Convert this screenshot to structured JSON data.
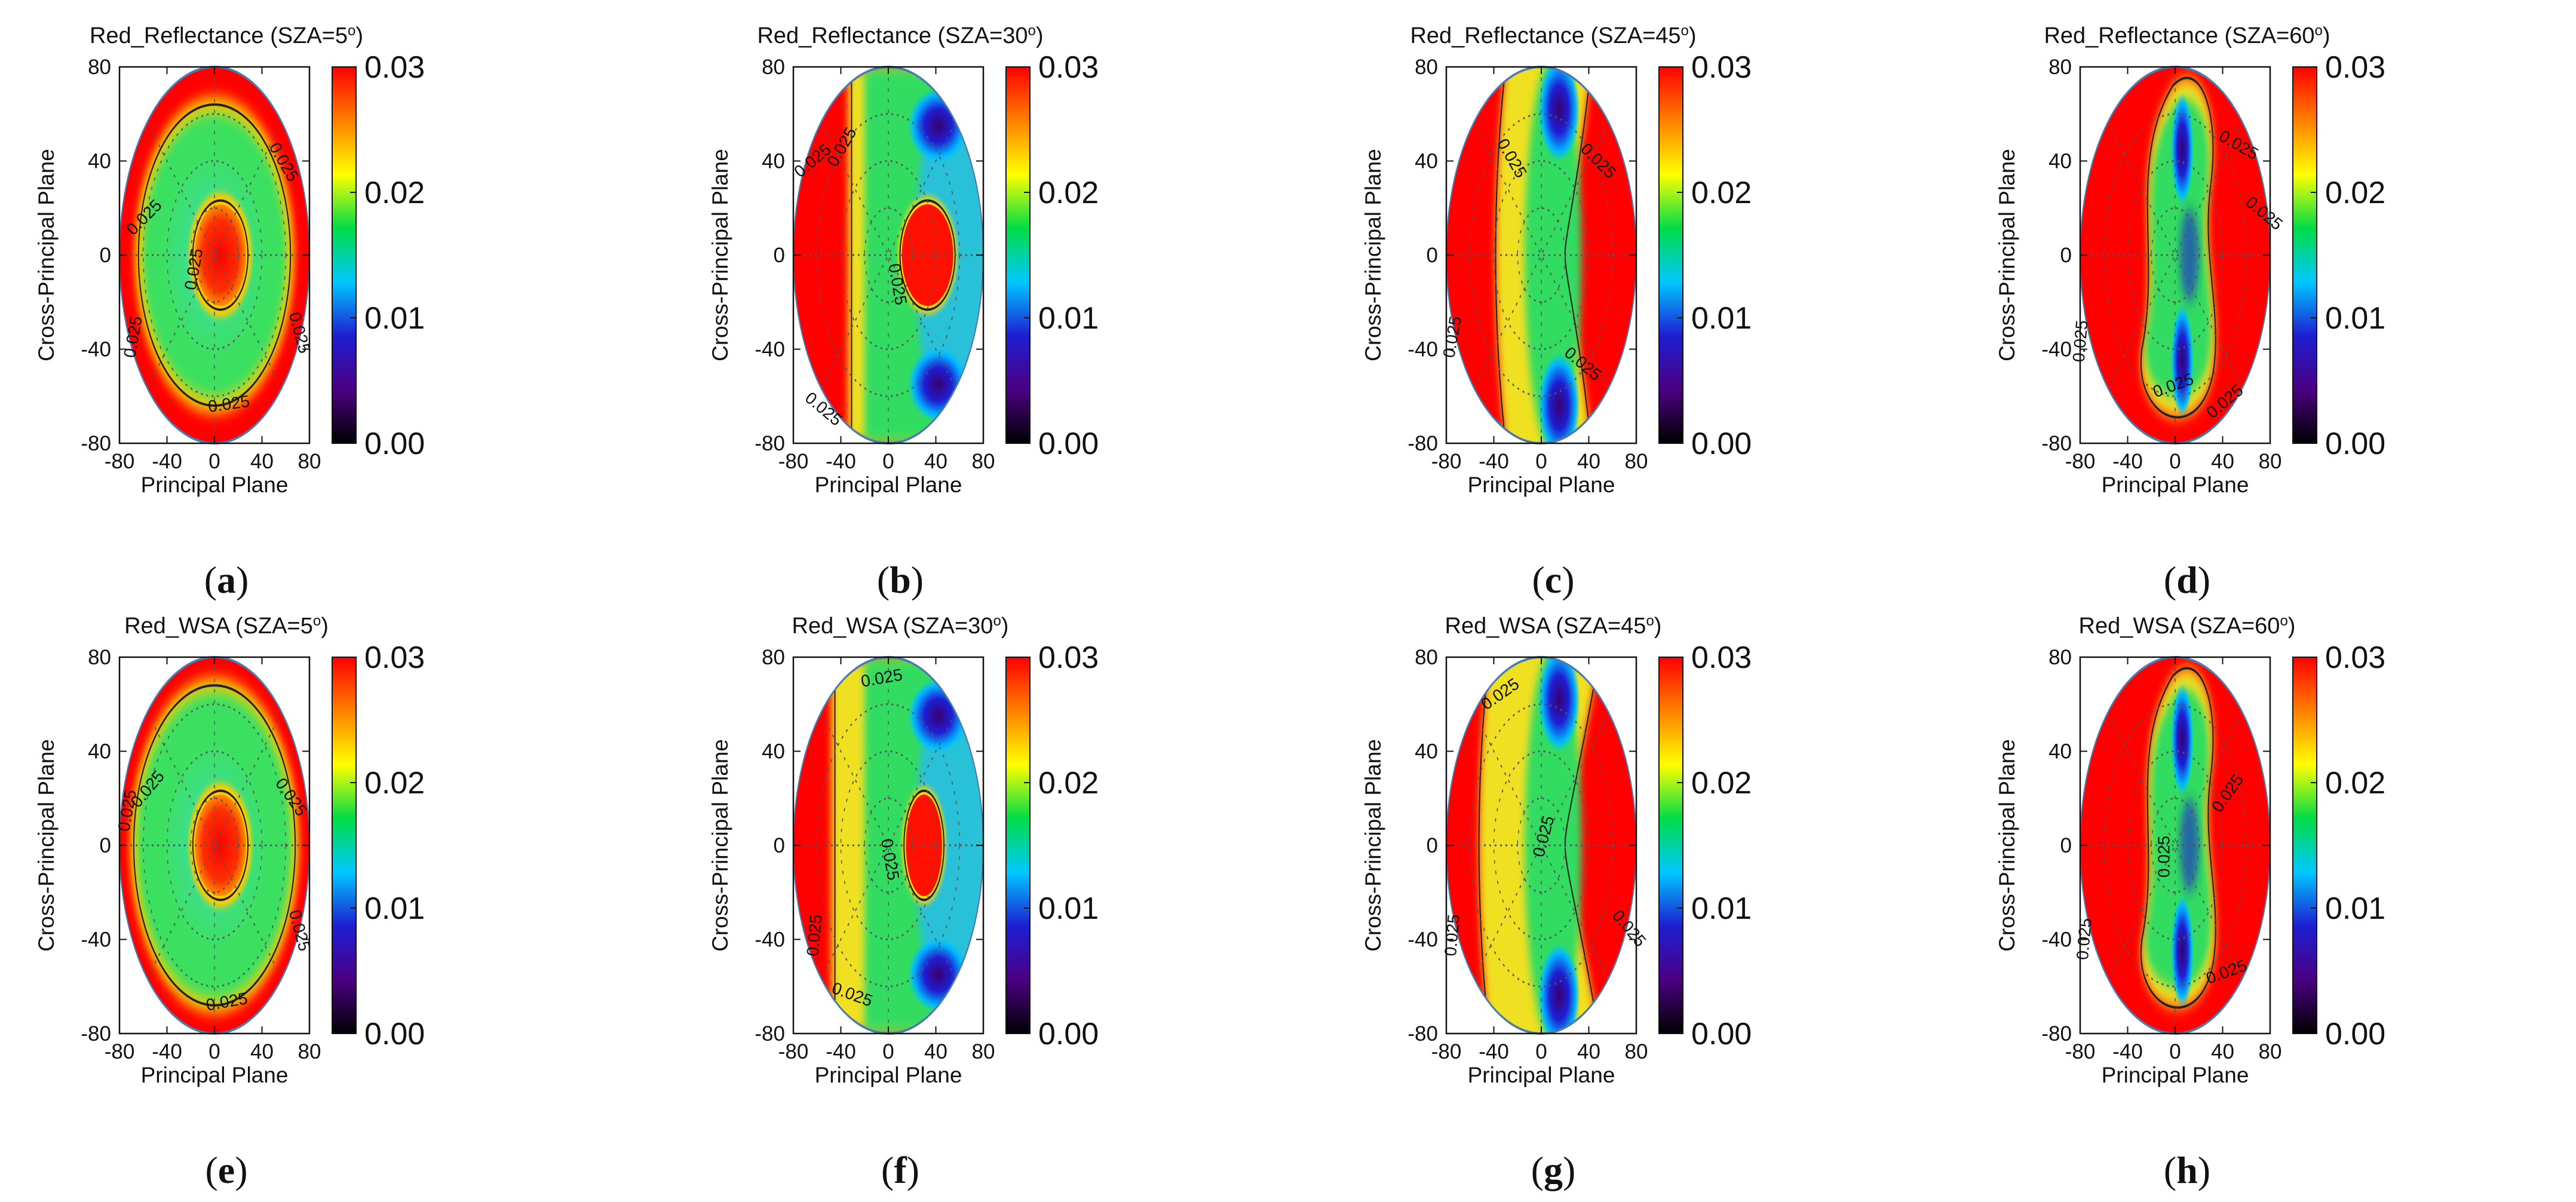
{
  "figure": {
    "colors": {
      "colormap": [
        "#000000",
        "#4b0082",
        "#1e1ed2",
        "#00c8ff",
        "#00dc46",
        "#ffff00",
        "#ff8000",
        "#ff0000"
      ],
      "contour": "#222222",
      "grid": "#555555"
    }
  },
  "chart_data": [
    {
      "type": "heatmap",
      "id": "a",
      "label": "a",
      "title_prefix": "Red_Reflectance (SZA=",
      "title_value": "5",
      "title_suffix": ")",
      "sza_deg": 5,
      "xlabel": "Principal Plane",
      "ylabel": "Cross-Principal Plane",
      "xlim": [
        -80,
        80
      ],
      "ylim": [
        -80,
        80
      ],
      "xticks": [
        "-80",
        "-40",
        "0",
        "40",
        "80"
      ],
      "yticks": [
        "80",
        "40",
        "0",
        "-40",
        "-80"
      ],
      "colorbar": {
        "range": [
          0.0,
          0.03
        ],
        "ticks": [
          "0.03",
          "0.02",
          "0.01",
          "0.00"
        ]
      },
      "contour_labels": [
        "0.025",
        "0.025",
        "0.025",
        "0.025",
        "0.025",
        "0.025"
      ]
    },
    {
      "type": "heatmap",
      "id": "b",
      "label": "b",
      "title_prefix": "Red_Reflectance (SZA=",
      "title_value": "30",
      "title_suffix": ")",
      "sza_deg": 30,
      "xlabel": "Principal Plane",
      "ylabel": "Cross-Principal Plane",
      "xlim": [
        -80,
        80
      ],
      "ylim": [
        -80,
        80
      ],
      "xticks": [
        "-80",
        "-40",
        "0",
        "40",
        "80"
      ],
      "yticks": [
        "80",
        "40",
        "0",
        "-40",
        "-80"
      ],
      "colorbar": {
        "range": [
          0.0,
          0.03
        ],
        "ticks": [
          "0.03",
          "0.02",
          "0.01",
          "0.00"
        ]
      },
      "contour_labels": [
        "0.025",
        "0.025",
        "0.025",
        "0.025"
      ]
    },
    {
      "type": "heatmap",
      "id": "c",
      "label": "c",
      "title_prefix": "Red_Reflectance (SZA=",
      "title_value": "45",
      "title_suffix": ")",
      "sza_deg": 45,
      "xlabel": "Principal Plane",
      "ylabel": "Cross-Principal Plane",
      "xlim": [
        -80,
        80
      ],
      "ylim": [
        -80,
        80
      ],
      "xticks": [
        "-80",
        "-40",
        "0",
        "40",
        "80"
      ],
      "yticks": [
        "80",
        "40",
        "0",
        "-40",
        "-80"
      ],
      "colorbar": {
        "range": [
          0.0,
          0.03
        ],
        "ticks": [
          "0.03",
          "0.02",
          "0.01",
          "0.00"
        ]
      },
      "contour_labels": [
        "0.025",
        "0.025",
        "0.025",
        "0.025"
      ]
    },
    {
      "type": "heatmap",
      "id": "d",
      "label": "d",
      "title_prefix": "Red_Reflectance (SZA=",
      "title_value": "60",
      "title_suffix": ")",
      "sza_deg": 60,
      "xlabel": "Principal Plane",
      "ylabel": "Cross-Principal Plane",
      "xlim": [
        -80,
        80
      ],
      "ylim": [
        -80,
        80
      ],
      "xticks": [
        "-80",
        "-40",
        "0",
        "40",
        "80"
      ],
      "yticks": [
        "80",
        "40",
        "0",
        "-40",
        "-80"
      ],
      "colorbar": {
        "range": [
          0.0,
          0.03
        ],
        "ticks": [
          "0.03",
          "0.02",
          "0.01",
          "0.00"
        ]
      },
      "contour_labels": [
        "0.025",
        "0.025",
        "0.025",
        "0.025",
        "0.025"
      ]
    },
    {
      "type": "heatmap",
      "id": "e",
      "label": "e",
      "title_prefix": "Red_WSA (SZA=",
      "title_value": "5",
      "title_suffix": ")",
      "sza_deg": 5,
      "xlabel": "Principal Plane",
      "ylabel": "Cross-Principal Plane",
      "xlim": [
        -80,
        80
      ],
      "ylim": [
        -80,
        80
      ],
      "xticks": [
        "-80",
        "-40",
        "0",
        "40",
        "80"
      ],
      "yticks": [
        "80",
        "40",
        "0",
        "-40",
        "-80"
      ],
      "colorbar": {
        "range": [
          0.0,
          0.03
        ],
        "ticks": [
          "0.03",
          "0.02",
          "0.01",
          "0.00"
        ]
      },
      "contour_labels": [
        "0.025",
        "0.025",
        "0.025",
        "0.025",
        "0.025"
      ]
    },
    {
      "type": "heatmap",
      "id": "f",
      "label": "f",
      "title_prefix": "Red_WSA (SZA=",
      "title_value": "30",
      "title_suffix": ")",
      "sza_deg": 30,
      "xlabel": "Principal Plane",
      "ylabel": "Cross-Principal Plane",
      "xlim": [
        -80,
        80
      ],
      "ylim": [
        -80,
        80
      ],
      "xticks": [
        "-80",
        "-40",
        "0",
        "40",
        "80"
      ],
      "yticks": [
        "80",
        "40",
        "0",
        "-40",
        "-80"
      ],
      "colorbar": {
        "range": [
          0.0,
          0.03
        ],
        "ticks": [
          "0.03",
          "0.02",
          "0.01",
          "0.00"
        ]
      },
      "contour_labels": [
        "0.025",
        "0.025",
        "0.025",
        "0.025"
      ]
    },
    {
      "type": "heatmap",
      "id": "g",
      "label": "g",
      "title_prefix": "Red_WSA (SZA=",
      "title_value": "45",
      "title_suffix": ")",
      "sza_deg": 45,
      "xlabel": "Principal Plane",
      "ylabel": "Cross-Principal Plane",
      "xlim": [
        -80,
        80
      ],
      "ylim": [
        -80,
        80
      ],
      "xticks": [
        "-80",
        "-40",
        "0",
        "40",
        "80"
      ],
      "yticks": [
        "80",
        "40",
        "0",
        "-40",
        "-80"
      ],
      "colorbar": {
        "range": [
          0.0,
          0.03
        ],
        "ticks": [
          "0.03",
          "0.02",
          "0.01",
          "0.00"
        ]
      },
      "contour_labels": [
        "0.025",
        "0.025",
        "0.025",
        "0.025"
      ]
    },
    {
      "type": "heatmap",
      "id": "h",
      "label": "h",
      "title_prefix": "Red_WSA (SZA=",
      "title_value": "60",
      "title_suffix": ")",
      "sza_deg": 60,
      "xlabel": "Principal Plane",
      "ylabel": "Cross-Principal Plane",
      "xlim": [
        -80,
        80
      ],
      "ylim": [
        -80,
        80
      ],
      "xticks": [
        "-80",
        "-40",
        "0",
        "40",
        "80"
      ],
      "yticks": [
        "80",
        "40",
        "0",
        "-40",
        "-80"
      ],
      "colorbar": {
        "range": [
          0.0,
          0.03
        ],
        "ticks": [
          "0.03",
          "0.02",
          "0.01",
          "0.00"
        ]
      },
      "contour_labels": [
        "0.025",
        "0.025",
        "0.025",
        "0.025"
      ]
    }
  ]
}
